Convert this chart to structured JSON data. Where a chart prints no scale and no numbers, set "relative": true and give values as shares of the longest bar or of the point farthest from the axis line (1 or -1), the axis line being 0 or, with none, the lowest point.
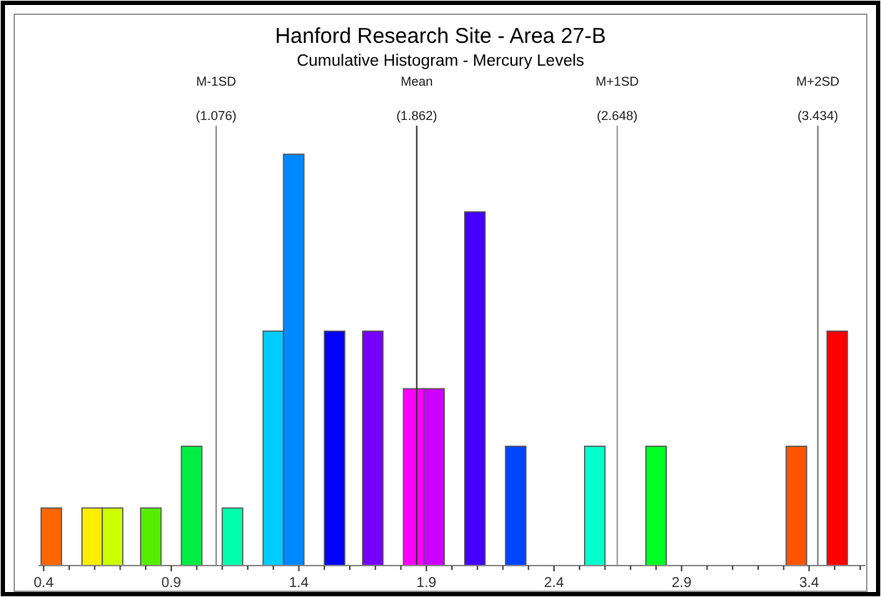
{
  "chart_data": {
    "type": "bar",
    "title": "Hanford Research Site - Area 27-B",
    "subtitle": "Cumulative Histogram - Mercury Levels",
    "relative": true,
    "x": [
      0.43,
      0.59,
      0.67,
      0.82,
      0.98,
      1.14,
      1.3,
      1.38,
      1.54,
      1.69,
      1.85,
      1.93,
      2.09,
      2.25,
      2.56,
      2.8,
      3.35,
      3.51
    ],
    "values": [
      0.14,
      0.14,
      0.14,
      0.14,
      0.29,
      0.14,
      0.57,
      1,
      0.57,
      0.57,
      0.43,
      0.43,
      0.86,
      0.29,
      0.29,
      0.29,
      0.29,
      0.57
    ],
    "colors": [
      "#ff6600",
      "#ffee00",
      "#ccff00",
      "#55ee00",
      "#00ee44",
      "#00ffaa",
      "#00ccff",
      "#0088ff",
      "#0000ff",
      "#7700ff",
      "#ff00ff",
      "#cc00ff",
      "#4400ff",
      "#0044ff",
      "#00ffcc",
      "#00ff22",
      "#ff5500",
      "#ff0000"
    ],
    "xlim": [
      0.38,
      3.62
    ],
    "xticks": [
      0.4,
      {
        "value": 0.5,
        "label": null
      },
      {
        "value": 0.6,
        "label": null
      },
      {
        "value": 0.7,
        "label": null
      },
      {
        "value": 0.8,
        "label": null
      },
      0.9,
      {
        "value": 1.0,
        "label": null
      },
      {
        "value": 1.1,
        "label": null
      },
      {
        "value": 1.2,
        "label": null
      },
      {
        "value": 1.3,
        "label": null
      },
      1.4,
      {
        "value": 1.5,
        "label": null
      },
      {
        "value": 1.6,
        "label": null
      },
      {
        "value": 1.7,
        "label": null
      },
      {
        "value": 1.8,
        "label": null
      },
      1.9,
      {
        "value": 2.0,
        "label": null
      },
      {
        "value": 2.1,
        "label": null
      },
      {
        "value": 2.2,
        "label": null
      },
      {
        "value": 2.3,
        "label": null
      },
      2.4,
      {
        "value": 2.5,
        "label": null
      },
      {
        "value": 2.6,
        "label": null
      },
      {
        "value": 2.7,
        "label": null
      },
      {
        "value": 2.8,
        "label": null
      },
      2.9,
      {
        "value": 3.0,
        "label": null
      },
      {
        "value": 3.1,
        "label": null
      },
      {
        "value": 3.2,
        "label": null
      },
      {
        "value": 3.3,
        "label": null
      },
      3.4,
      {
        "value": 3.5,
        "label": null
      },
      {
        "value": 3.6,
        "label": null
      }
    ],
    "ref_lines": [
      {
        "axis": "x",
        "value": 1.076,
        "label": "M-1SD (1.076)",
        "color": "#888888"
      },
      {
        "axis": "x",
        "value": 1.862,
        "label": "Mean (1.862)",
        "color": "#333333"
      },
      {
        "axis": "x",
        "value": 2.648,
        "label": "M+1SD (2.648)",
        "color": "#999999"
      },
      {
        "axis": "x",
        "value": 3.434,
        "label": "M+2SD (3.434)",
        "color": "#777777"
      }
    ]
  }
}
